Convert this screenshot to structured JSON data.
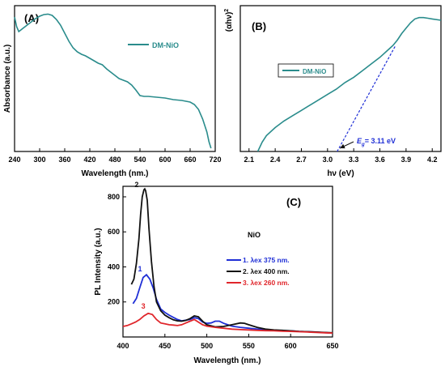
{
  "chart_data": [
    {
      "panel": "(A)",
      "type": "line",
      "title": "",
      "xlabel": "Wavelength (nm.)",
      "ylabel": "Absorbance (a.u.)",
      "xlim": [
        240,
        720
      ],
      "xticks": [
        240,
        300,
        360,
        420,
        480,
        540,
        600,
        660,
        720
      ],
      "yticks": [],
      "legend": "top-right",
      "color": "#2a8c8c",
      "series": [
        {
          "name": "DM-NiO",
          "x": [
            240,
            245,
            250,
            255,
            260,
            270,
            280,
            290,
            300,
            310,
            320,
            330,
            340,
            350,
            360,
            370,
            380,
            390,
            400,
            410,
            420,
            430,
            440,
            450,
            460,
            470,
            480,
            490,
            500,
            510,
            520,
            530,
            540,
            550,
            560,
            580,
            600,
            620,
            640,
            660,
            670,
            680,
            690,
            700,
            705,
            710
          ],
          "y": [
            0.83,
            0.77,
            0.74,
            0.75,
            0.76,
            0.78,
            0.8,
            0.82,
            0.835,
            0.845,
            0.848,
            0.84,
            0.815,
            0.78,
            0.73,
            0.68,
            0.64,
            0.615,
            0.6,
            0.59,
            0.575,
            0.56,
            0.545,
            0.535,
            0.51,
            0.49,
            0.47,
            0.45,
            0.44,
            0.43,
            0.41,
            0.38,
            0.345,
            0.34,
            0.34,
            0.335,
            0.33,
            0.32,
            0.315,
            0.305,
            0.29,
            0.26,
            0.2,
            0.12,
            0.06,
            0.02
          ]
        }
      ]
    },
    {
      "panel": "(B)",
      "type": "line",
      "title": "",
      "xlabel": "hν (eV)",
      "ylabel": "(αhν)²",
      "xlim": [
        2.0,
        4.3
      ],
      "xticks": [
        2.1,
        2.4,
        2.7,
        3.0,
        3.3,
        3.6,
        3.9,
        4.2
      ],
      "yticks": [],
      "legend": "middle-left",
      "color": "#2a8c8c",
      "annotation": "Eg = 3.11 eV",
      "band_gap": 3.11,
      "series": [
        {
          "name": "DM-NiO",
          "x": [
            2.2,
            2.25,
            2.3,
            2.4,
            2.5,
            2.6,
            2.7,
            2.8,
            2.9,
            3.0,
            3.1,
            3.2,
            3.3,
            3.4,
            3.5,
            3.6,
            3.7,
            3.75,
            3.8,
            3.85,
            3.9,
            3.95,
            4.0,
            4.05,
            4.1,
            4.15,
            4.2,
            4.3
          ],
          "y": [
            0.0,
            0.07,
            0.12,
            0.18,
            0.23,
            0.27,
            0.31,
            0.35,
            0.39,
            0.43,
            0.47,
            0.52,
            0.56,
            0.61,
            0.66,
            0.71,
            0.77,
            0.8,
            0.84,
            0.89,
            0.93,
            0.97,
            1.0,
            1.01,
            1.01,
            1.005,
            1.0,
            0.99
          ]
        }
      ],
      "tangent": {
        "x": [
          3.11,
          3.78
        ],
        "y": [
          0.0,
          0.8
        ]
      }
    },
    {
      "panel": "(C)",
      "type": "line",
      "title": "",
      "xlabel": "Wavelength (nm.)",
      "ylabel": "PL Intensity (a.u.)",
      "xlim": [
        400,
        650
      ],
      "ylim": [
        0,
        860
      ],
      "xticks": [
        400,
        450,
        500,
        550,
        600,
        650
      ],
      "yticks": [
        200,
        400,
        600,
        800
      ],
      "legend_title": "NiO",
      "legend": "right",
      "series": [
        {
          "name": "1. λex 375 nm.",
          "curve_label": "1",
          "color": "#1f2fd6",
          "x": [
            412,
            416,
            420,
            424,
            428,
            432,
            436,
            440,
            445,
            450,
            455,
            460,
            465,
            470,
            475,
            480,
            485,
            490,
            495,
            500,
            505,
            510,
            515,
            520,
            525,
            530,
            540,
            550,
            560,
            570,
            580,
            590,
            600,
            610,
            620,
            630,
            640,
            650
          ],
          "y": [
            190,
            220,
            280,
            340,
            355,
            330,
            280,
            215,
            160,
            140,
            125,
            112,
            100,
            92,
            96,
            100,
            110,
            105,
            85,
            78,
            80,
            90,
            90,
            78,
            70,
            62,
            55,
            50,
            45,
            40,
            38,
            36,
            35,
            32,
            30,
            28,
            25,
            22
          ]
        },
        {
          "name": "2. λex 400 nm.",
          "curve_label": "2",
          "color": "#111111",
          "x": [
            410,
            413,
            416,
            419,
            421,
            423,
            425,
            426,
            427,
            429,
            431,
            434,
            437,
            440,
            445,
            450,
            455,
            460,
            465,
            470,
            475,
            480,
            485,
            490,
            495,
            500,
            510,
            520,
            530,
            540,
            545,
            550,
            560,
            570,
            580,
            590,
            600,
            610,
            620,
            630,
            640,
            650
          ],
          "y": [
            300,
            330,
            420,
            560,
            700,
            800,
            840,
            845,
            835,
            780,
            620,
            430,
            290,
            200,
            150,
            125,
            110,
            98,
            92,
            90,
            95,
            105,
            120,
            115,
            90,
            70,
            58,
            60,
            70,
            80,
            78,
            70,
            55,
            45,
            40,
            38,
            35,
            32,
            30,
            28,
            26,
            24
          ]
        },
        {
          "name": "3. λex 260 nm.",
          "curve_label": "3",
          "color": "#e0262b",
          "x": [
            400,
            405,
            410,
            415,
            420,
            425,
            430,
            435,
            440,
            445,
            450,
            455,
            460,
            465,
            470,
            475,
            480,
            485,
            490,
            495,
            500,
            510,
            520,
            530,
            540,
            550,
            560,
            570,
            580,
            590,
            600,
            610,
            620,
            630,
            640,
            650
          ],
          "y": [
            60,
            65,
            75,
            85,
            100,
            120,
            135,
            128,
            100,
            80,
            75,
            70,
            68,
            65,
            70,
            80,
            90,
            100,
            85,
            70,
            62,
            55,
            50,
            45,
            42,
            40,
            38,
            36,
            35,
            33,
            32,
            30,
            28,
            26,
            24,
            22
          ]
        }
      ]
    }
  ]
}
